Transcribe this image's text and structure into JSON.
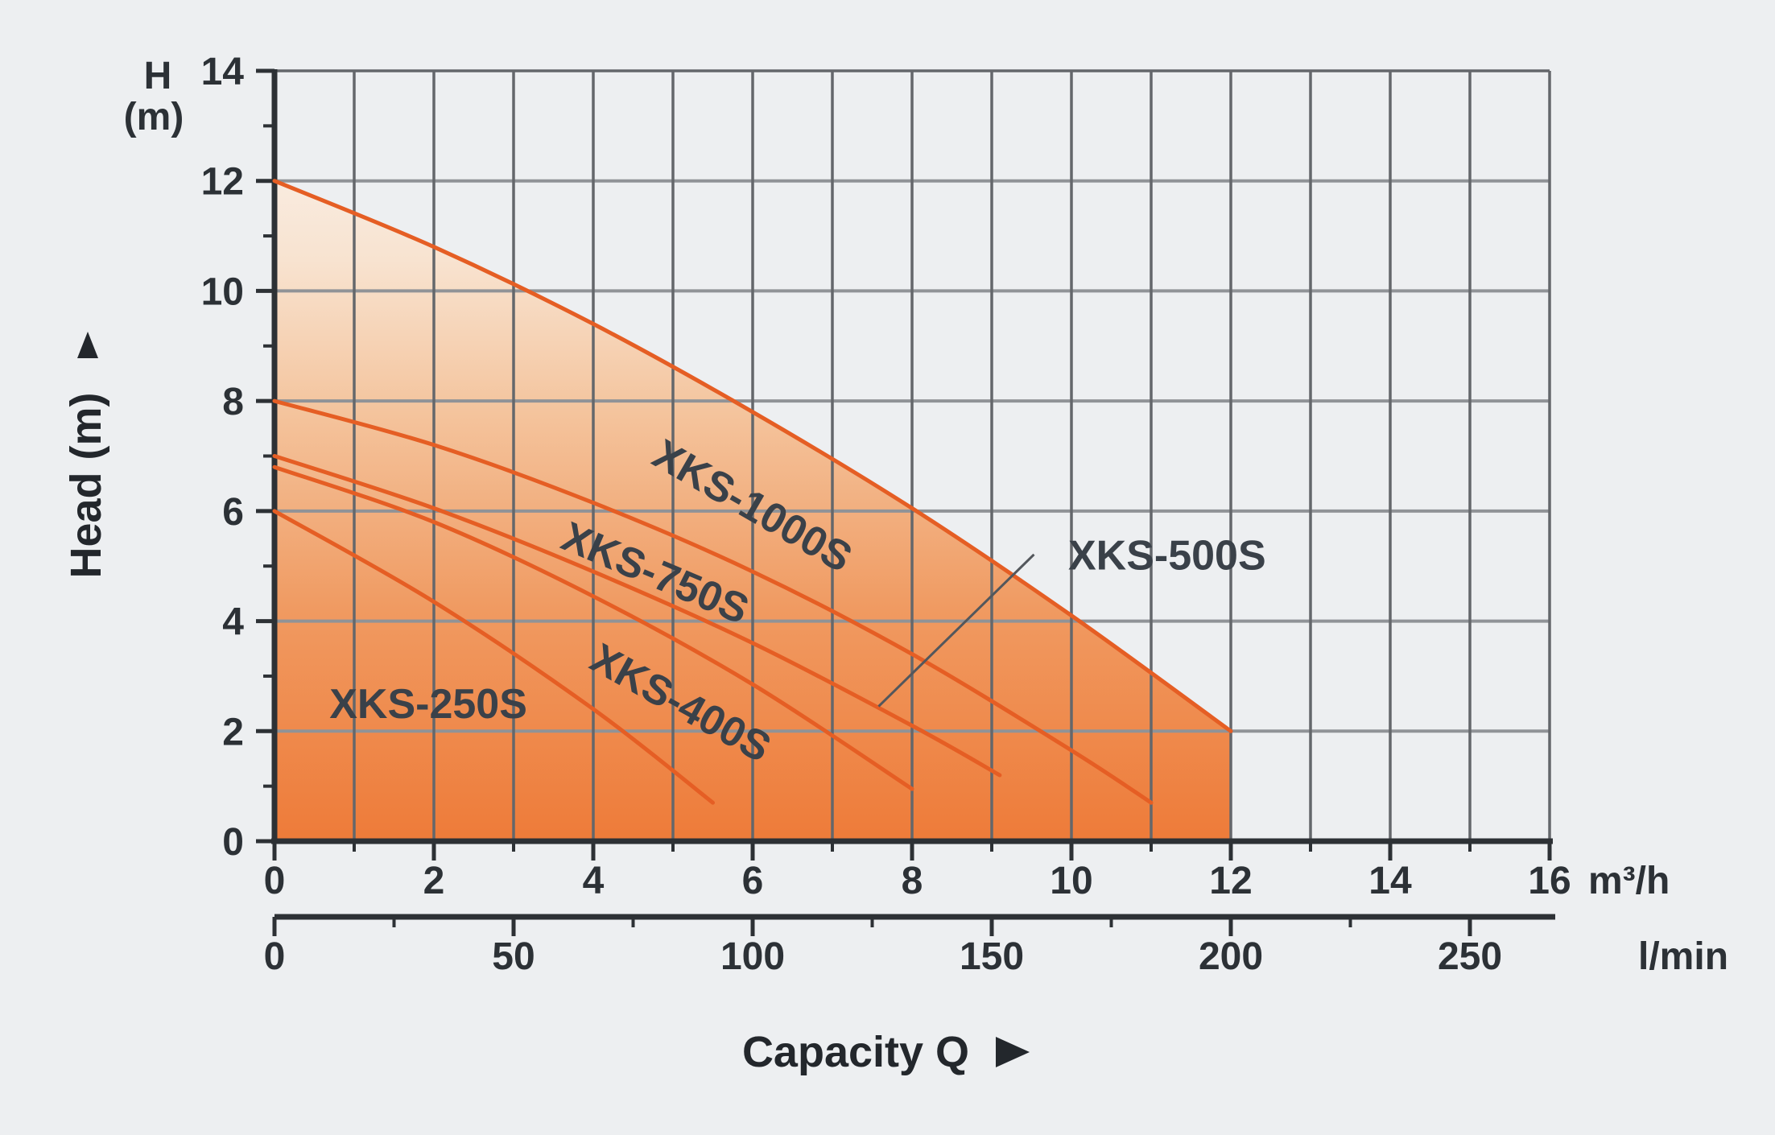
{
  "page": {
    "background": "#edeff1"
  },
  "chart_data": {
    "type": "line",
    "title": "",
    "x_axis": {
      "title": "Capacity Q",
      "unit_label": "m³/h",
      "min": 0,
      "max": 16,
      "tick_step": 1,
      "gridline_step": 1,
      "labeled_ticks": [
        0,
        2,
        4,
        6,
        8,
        10,
        12,
        14,
        16
      ]
    },
    "x_axis_secondary": {
      "unit_label": "l/min",
      "min": 0,
      "max": 250,
      "tick_step": 25,
      "labeled_ticks": [
        0,
        50,
        100,
        150,
        200,
        250
      ],
      "m3h_per_50lmin": 3
    },
    "y_axis": {
      "title": "Head (m)",
      "corner_label_lines": [
        "H",
        "(m)"
      ],
      "min": 0,
      "max": 14,
      "tick_step": 1,
      "gridline_step": 2,
      "labeled_ticks": [
        0,
        2,
        4,
        6,
        8,
        10,
        12,
        14
      ]
    },
    "series": [
      {
        "name": "XKS-1000S",
        "points": [
          [
            0,
            12
          ],
          [
            2,
            10.8
          ],
          [
            4,
            9.4
          ],
          [
            6,
            7.8
          ],
          [
            8,
            6.05
          ],
          [
            10,
            4.1
          ],
          [
            12,
            2.0
          ]
        ],
        "label": {
          "x": 6.0,
          "y": 6.1,
          "angle": 30
        }
      },
      {
        "name": "XKS-750S",
        "points": [
          [
            0,
            8
          ],
          [
            2,
            7.2
          ],
          [
            4,
            6.15
          ],
          [
            6,
            4.9
          ],
          [
            8,
            3.4
          ],
          [
            10,
            1.65
          ],
          [
            11,
            0.7
          ]
        ],
        "label": {
          "x": 4.78,
          "y": 4.88,
          "angle": 23
        }
      },
      {
        "name": "XKS-500S",
        "points": [
          [
            0,
            7
          ],
          [
            2,
            6.05
          ],
          [
            4,
            4.9
          ],
          [
            6,
            3.6
          ],
          [
            8,
            2.1
          ],
          [
            9.1,
            1.2
          ]
        ],
        "label": {
          "x": 11.2,
          "y": 5.2,
          "angle": 0
        },
        "leader": {
          "from": [
            9.53,
            5.21
          ],
          "to": [
            7.58,
            2.45
          ]
        }
      },
      {
        "name": "XKS-400S",
        "points": [
          [
            0,
            6.8
          ],
          [
            2,
            5.8
          ],
          [
            4,
            4.45
          ],
          [
            6,
            2.85
          ],
          [
            8,
            0.95
          ]
        ],
        "label": {
          "x": 5.1,
          "y": 2.52,
          "angle": 29
        }
      },
      {
        "name": "XKS-250S",
        "points": [
          [
            0,
            6
          ],
          [
            2,
            4.35
          ],
          [
            4,
            2.4
          ],
          [
            5.5,
            0.7
          ]
        ],
        "label": {
          "x": 1.93,
          "y": 2.5,
          "angle": 0
        }
      }
    ],
    "area_fill": {
      "under_series": "XKS-1000S",
      "right_limit_m3h": 12,
      "gradient_stops": [
        {
          "offset": 0.0,
          "color": "#ee7b39"
        },
        {
          "offset": 0.35,
          "color": "#f09a61"
        },
        {
          "offset": 0.65,
          "color": "#f4c49d"
        },
        {
          "offset": 0.88,
          "color": "#f8e3d0"
        },
        {
          "offset": 1.0,
          "color": "#f9ebdf"
        }
      ]
    },
    "colors": {
      "curve": "#e55e24",
      "curve_label_text": "#3a4149",
      "axis": "#2d3135",
      "tick_text": "#2c3136",
      "title_text": "#23272c",
      "grid_vertical": "#64676b",
      "grid_horizontal": "#909397",
      "leader_line": "#53575c",
      "background": "#edeff1"
    }
  }
}
